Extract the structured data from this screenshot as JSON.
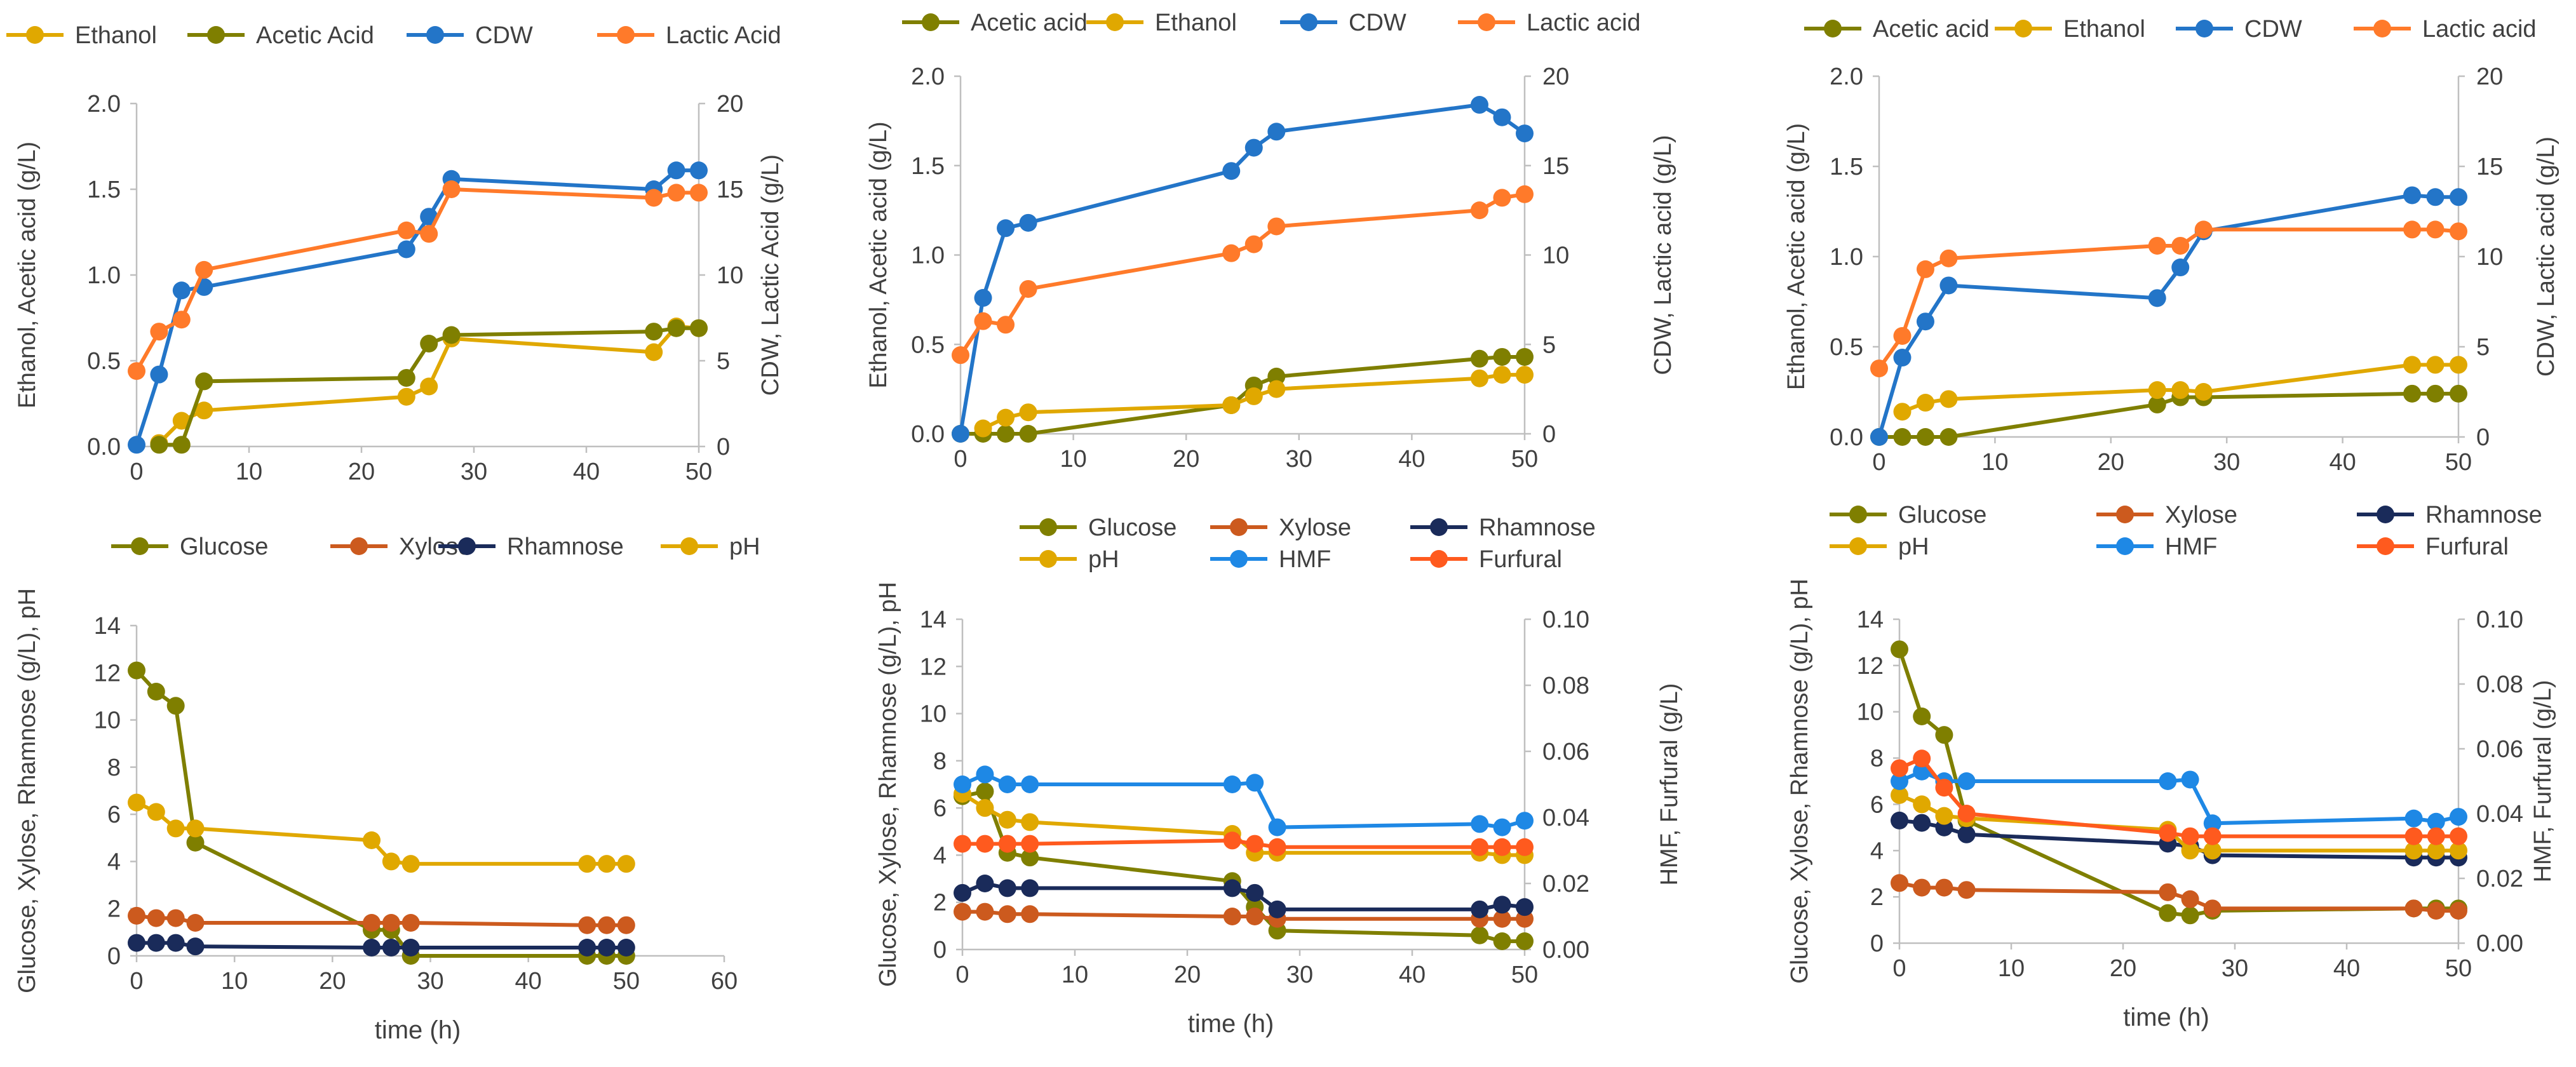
{
  "colors": {
    "ethanol": "#E0A800",
    "acetic": "#7F7F00",
    "cdw": "#2375C8",
    "lactic": "#FF7A2A",
    "glucose": "#7F7F00",
    "xylose": "#CC5A1E",
    "rhamnose": "#1A2B5A",
    "ph": "#E0A800",
    "hmf": "#1E88E5",
    "furfural": "#FF5A1E"
  },
  "chart_data": [
    {
      "type": "line",
      "title": "",
      "xlabel": "",
      "ylabel": "Ethanol, Acetic acid (g/L)",
      "y2label": "CDW, Lactic Acid (g/L)",
      "xlim": [
        0,
        50
      ],
      "xticks": [
        "0",
        "10",
        "20",
        "30",
        "40",
        "50"
      ],
      "ylim": [
        0,
        2
      ],
      "yticks": [
        "0.0",
        "0.5",
        "1.0",
        "1.5",
        "2.0"
      ],
      "y2lim": [
        0,
        20
      ],
      "y2ticks": [
        "0",
        "5",
        "10",
        "15",
        "20"
      ],
      "legend": [
        "Ethanol",
        "Acetic Acid",
        "CDW",
        "Lactic Acid"
      ],
      "series": [
        {
          "name": "Ethanol",
          "axis": "left",
          "color": "ethanol",
          "x": [
            2,
            4,
            6,
            24,
            26,
            28,
            46,
            48,
            50
          ],
          "y": [
            0.02,
            0.15,
            0.21,
            0.29,
            0.35,
            0.63,
            0.55,
            0.7,
            0.69
          ]
        },
        {
          "name": "Acetic Acid",
          "axis": "left",
          "color": "acetic",
          "x": [
            2,
            4,
            6,
            24,
            26,
            28,
            46,
            48,
            50
          ],
          "y": [
            0.01,
            0.01,
            0.38,
            0.4,
            0.6,
            0.65,
            0.67,
            0.69,
            0.69
          ]
        },
        {
          "name": "CDW",
          "axis": "right",
          "color": "cdw",
          "x": [
            0,
            2,
            4,
            6,
            24,
            26,
            28,
            46,
            48,
            50
          ],
          "y": [
            0.1,
            4.2,
            9.1,
            9.3,
            11.5,
            13.4,
            15.6,
            15.0,
            16.1,
            16.1
          ]
        },
        {
          "name": "Lactic Acid",
          "axis": "right",
          "color": "lactic",
          "x": [
            0,
            2,
            4,
            6,
            24,
            26,
            28,
            46,
            48,
            50
          ],
          "y": [
            4.4,
            6.7,
            7.4,
            10.3,
            12.6,
            12.4,
            15.0,
            14.5,
            14.8,
            14.8
          ]
        }
      ]
    },
    {
      "type": "line",
      "title": "",
      "xlabel": "",
      "ylabel": "Ethanol, Acetic acid (g/L)",
      "y2label": "CDW, Lactic acid (g/L)",
      "xlim": [
        0,
        50
      ],
      "xticks": [
        "0",
        "10",
        "20",
        "30",
        "40",
        "50"
      ],
      "ylim": [
        0,
        2
      ],
      "yticks": [
        "0.0",
        "0.5",
        "1.0",
        "1.5",
        "2.0"
      ],
      "y2lim": [
        0,
        20
      ],
      "y2ticks": [
        "0",
        "5",
        "10",
        "15",
        "20"
      ],
      "legend": [
        "Acetic acid",
        "Ethanol",
        "CDW",
        "Lactic acid"
      ],
      "series": [
        {
          "name": "Acetic acid",
          "axis": "left",
          "color": "acetic",
          "x": [
            0,
            2,
            4,
            6,
            24,
            26,
            28,
            46,
            48,
            50
          ],
          "y": [
            0.0,
            0.0,
            0.0,
            0.0,
            0.16,
            0.27,
            0.32,
            0.42,
            0.43,
            0.43
          ]
        },
        {
          "name": "Ethanol",
          "axis": "left",
          "color": "ethanol",
          "x": [
            2,
            4,
            6,
            24,
            26,
            28,
            46,
            48,
            50
          ],
          "y": [
            0.03,
            0.09,
            0.12,
            0.16,
            0.21,
            0.25,
            0.31,
            0.33,
            0.33
          ]
        },
        {
          "name": "CDW",
          "axis": "right",
          "color": "cdw",
          "x": [
            0,
            2,
            4,
            6,
            24,
            26,
            28,
            46,
            48,
            50
          ],
          "y": [
            0.0,
            7.6,
            11.5,
            11.8,
            14.7,
            16.0,
            16.9,
            18.4,
            17.7,
            16.8
          ]
        },
        {
          "name": "Lactic acid",
          "axis": "right",
          "color": "lactic",
          "x": [
            0,
            2,
            4,
            6,
            24,
            26,
            28,
            46,
            48,
            50
          ],
          "y": [
            4.4,
            6.3,
            6.1,
            8.1,
            10.1,
            10.6,
            11.6,
            12.5,
            13.2,
            13.4
          ]
        }
      ]
    },
    {
      "type": "line",
      "title": "",
      "xlabel": "",
      "ylabel": "Ethanol, Acetic acid (g/L)",
      "y2label": "CDW, Lactic acid (g/L)",
      "xlim": [
        0,
        50
      ],
      "xticks": [
        "0",
        "10",
        "20",
        "30",
        "40",
        "50"
      ],
      "ylim": [
        0,
        2
      ],
      "yticks": [
        "0.0",
        "0.5",
        "1.0",
        "1.5",
        "2.0"
      ],
      "y2lim": [
        0,
        20
      ],
      "y2ticks": [
        "0",
        "5",
        "10",
        "15",
        "20"
      ],
      "legend": [
        "Acetic acid",
        "Ethanol",
        "CDW",
        "Lactic acid"
      ],
      "series": [
        {
          "name": "Acetic acid",
          "axis": "left",
          "color": "acetic",
          "x": [
            0,
            2,
            4,
            6,
            24,
            26,
            28,
            46,
            48,
            50
          ],
          "y": [
            0.0,
            0.0,
            0.0,
            0.0,
            0.18,
            0.22,
            0.22,
            0.24,
            0.24,
            0.24
          ]
        },
        {
          "name": "Ethanol",
          "axis": "left",
          "color": "ethanol",
          "x": [
            2,
            4,
            6,
            24,
            26,
            28,
            46,
            48,
            50
          ],
          "y": [
            0.14,
            0.19,
            0.21,
            0.26,
            0.26,
            0.25,
            0.4,
            0.4,
            0.4
          ]
        },
        {
          "name": "CDW",
          "axis": "right",
          "color": "cdw",
          "x": [
            0,
            2,
            4,
            6,
            24,
            26,
            28,
            46,
            48,
            50
          ],
          "y": [
            0.0,
            4.4,
            6.4,
            8.4,
            7.7,
            9.4,
            11.4,
            13.4,
            13.3,
            13.3
          ]
        },
        {
          "name": "Lactic acid",
          "axis": "right",
          "color": "lactic",
          "x": [
            0,
            2,
            4,
            6,
            24,
            26,
            28,
            46,
            48,
            50
          ],
          "y": [
            3.8,
            5.6,
            9.3,
            9.9,
            10.6,
            10.6,
            11.5,
            11.5,
            11.5,
            11.4
          ]
        }
      ]
    },
    {
      "type": "line",
      "title": "",
      "xlabel": "time (h)",
      "ylabel": "Glucose, Xylose, Rhamnose (g/L), pH",
      "xlim": [
        0,
        60
      ],
      "xticks": [
        "0",
        "10",
        "20",
        "30",
        "40",
        "50",
        "60"
      ],
      "ylim": [
        0,
        14
      ],
      "yticks": [
        "0",
        "2",
        "4",
        "6",
        "8",
        "10",
        "12",
        "14"
      ],
      "legend": [
        "Glucose",
        "Xylose",
        "Rhamnose",
        "pH"
      ],
      "series": [
        {
          "name": "Glucose",
          "axis": "left",
          "color": "glucose",
          "x": [
            0,
            2,
            4,
            6,
            24,
            26,
            28,
            46,
            48,
            50
          ],
          "y": [
            12.1,
            11.2,
            10.6,
            4.8,
            1.1,
            1.1,
            0.0,
            0.0,
            0.0,
            0.0
          ]
        },
        {
          "name": "Xylose",
          "axis": "left",
          "color": "xylose",
          "x": [
            0,
            2,
            4,
            6,
            24,
            26,
            28,
            46,
            48,
            50
          ],
          "y": [
            1.7,
            1.6,
            1.6,
            1.4,
            1.4,
            1.4,
            1.4,
            1.3,
            1.3,
            1.3
          ]
        },
        {
          "name": "Rhamnose",
          "axis": "left",
          "color": "rhamnose",
          "x": [
            0,
            2,
            4,
            6,
            24,
            26,
            28,
            46,
            48,
            50
          ],
          "y": [
            0.55,
            0.55,
            0.55,
            0.4,
            0.35,
            0.35,
            0.35,
            0.35,
            0.35,
            0.35
          ]
        },
        {
          "name": "pH",
          "axis": "left",
          "color": "ph",
          "x": [
            0,
            2,
            4,
            6,
            24,
            26,
            28,
            46,
            48,
            50
          ],
          "y": [
            6.5,
            6.1,
            5.4,
            5.4,
            4.9,
            4.0,
            3.9,
            3.9,
            3.9,
            3.9
          ]
        }
      ]
    },
    {
      "type": "line",
      "title": "",
      "xlabel": "time (h)",
      "ylabel": "Glucose, Xylose, Rhamnose (g/L), pH",
      "y2label": "HMF, Furfural (g/L)",
      "xlim": [
        0,
        50
      ],
      "xticks": [
        "0",
        "10",
        "20",
        "30",
        "40",
        "50"
      ],
      "ylim": [
        0,
        14
      ],
      "yticks": [
        "0",
        "2",
        "4",
        "6",
        "8",
        "10",
        "12",
        "14"
      ],
      "y2lim": [
        0,
        0.1
      ],
      "y2ticks": [
        "0.00",
        "0.02",
        "0.04",
        "0.06",
        "0.08",
        "0.10"
      ],
      "legend": [
        "Glucose",
        "Xylose",
        "Rhamnose",
        "pH",
        "HMF",
        "Furfural"
      ],
      "series": [
        {
          "name": "Glucose",
          "axis": "left",
          "color": "glucose",
          "x": [
            0,
            2,
            4,
            6,
            24,
            26,
            28,
            46,
            48,
            50
          ],
          "y": [
            6.5,
            6.7,
            4.1,
            3.9,
            2.9,
            1.8,
            0.8,
            0.6,
            0.35,
            0.35
          ]
        },
        {
          "name": "Xylose",
          "axis": "left",
          "color": "xylose",
          "x": [
            0,
            2,
            4,
            6,
            24,
            26,
            28,
            46,
            48,
            50
          ],
          "y": [
            1.6,
            1.6,
            1.5,
            1.5,
            1.4,
            1.4,
            1.3,
            1.3,
            1.3,
            1.3
          ]
        },
        {
          "name": "Rhamnose",
          "axis": "left",
          "color": "rhamnose",
          "x": [
            0,
            2,
            4,
            6,
            24,
            26,
            28,
            46,
            48,
            50
          ],
          "y": [
            2.4,
            2.8,
            2.6,
            2.6,
            2.6,
            2.4,
            1.7,
            1.7,
            1.9,
            1.8
          ]
        },
        {
          "name": "pH",
          "axis": "left",
          "color": "ph",
          "x": [
            0,
            2,
            4,
            6,
            24,
            26,
            28,
            46,
            48,
            50
          ],
          "y": [
            6.6,
            6.0,
            5.5,
            5.4,
            4.9,
            4.1,
            4.1,
            4.1,
            4.0,
            4.0
          ]
        },
        {
          "name": "HMF",
          "axis": "right",
          "color": "hmf",
          "x": [
            0,
            2,
            4,
            6,
            24,
            26,
            28,
            46,
            48,
            50
          ],
          "y": [
            0.05,
            0.053,
            0.05,
            0.05,
            0.05,
            0.0505,
            0.037,
            0.038,
            0.037,
            0.039
          ]
        },
        {
          "name": "Furfural",
          "axis": "right",
          "color": "furfural",
          "x": [
            0,
            2,
            4,
            6,
            24,
            26,
            28,
            46,
            48,
            50
          ],
          "y": [
            0.032,
            0.032,
            0.032,
            0.032,
            0.033,
            0.032,
            0.031,
            0.031,
            0.031,
            0.031
          ]
        }
      ]
    },
    {
      "type": "line",
      "title": "",
      "xlabel": "time (h)",
      "ylabel": "Glucose, Xylose, Rhamnose (g/L), pH",
      "y2label": "HMF, Furfural (g/L)",
      "xlim": [
        0,
        50
      ],
      "xticks": [
        "0",
        "10",
        "20",
        "30",
        "40",
        "50"
      ],
      "ylim": [
        0,
        14
      ],
      "yticks": [
        "0",
        "2",
        "4",
        "6",
        "8",
        "10",
        "12",
        "14"
      ],
      "y2lim": [
        0,
        0.1
      ],
      "y2ticks": [
        "0.00",
        "0.02",
        "0.04",
        "0.06",
        "0.08",
        "0.10"
      ],
      "legend": [
        "Glucose",
        "Xylose",
        "Rhamnose",
        "pH",
        "HMF",
        "Furfural"
      ],
      "series": [
        {
          "name": "Glucose",
          "axis": "left",
          "color": "glucose",
          "x": [
            0,
            2,
            4,
            6,
            24,
            26,
            28,
            46,
            48,
            50
          ],
          "y": [
            12.7,
            9.8,
            9.0,
            5.3,
            1.3,
            1.2,
            1.4,
            1.5,
            1.5,
            1.5
          ]
        },
        {
          "name": "Xylose",
          "axis": "left",
          "color": "xylose",
          "x": [
            0,
            2,
            4,
            6,
            24,
            26,
            28,
            46,
            48,
            50
          ],
          "y": [
            2.6,
            2.4,
            2.4,
            2.3,
            2.2,
            1.9,
            1.5,
            1.5,
            1.4,
            1.4
          ]
        },
        {
          "name": "Rhamnose",
          "axis": "left",
          "color": "rhamnose",
          "x": [
            0,
            2,
            4,
            6,
            24,
            26,
            28,
            46,
            48,
            50
          ],
          "y": [
            5.3,
            5.2,
            5.0,
            4.7,
            4.3,
            4.2,
            3.8,
            3.7,
            3.7,
            3.7
          ]
        },
        {
          "name": "pH",
          "axis": "left",
          "color": "ph",
          "x": [
            0,
            2,
            4,
            6,
            24,
            26,
            28,
            46,
            48,
            50
          ],
          "y": [
            6.4,
            6.0,
            5.5,
            5.4,
            4.9,
            4.0,
            4.0,
            4.0,
            4.0,
            4.0
          ]
        },
        {
          "name": "HMF",
          "axis": "right",
          "color": "hmf",
          "x": [
            0,
            2,
            4,
            6,
            24,
            26,
            28,
            46,
            48,
            50
          ],
          "y": [
            0.05,
            0.053,
            0.05,
            0.05,
            0.05,
            0.0505,
            0.037,
            0.0385,
            0.0375,
            0.039
          ]
        },
        {
          "name": "Furfural",
          "axis": "right",
          "color": "furfural",
          "x": [
            0,
            2,
            4,
            6,
            24,
            26,
            28,
            46,
            48,
            50
          ],
          "y": [
            0.054,
            0.057,
            0.048,
            0.04,
            0.034,
            0.033,
            0.033,
            0.033,
            0.033,
            0.033
          ]
        }
      ]
    }
  ]
}
